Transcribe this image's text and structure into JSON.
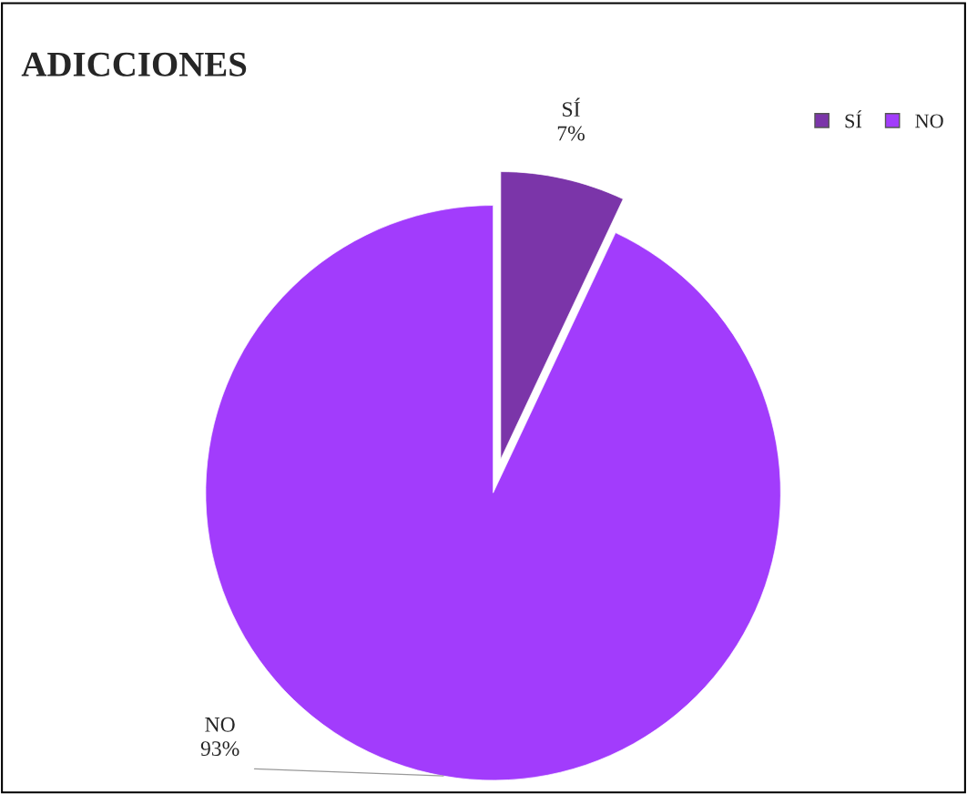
{
  "chart_data": {
    "type": "pie",
    "title": "ADICCIONES",
    "categories": [
      "SÍ",
      "NO"
    ],
    "values": [
      7,
      93
    ],
    "value_labels": [
      "7%",
      "93%"
    ],
    "colors": [
      "#7b35a9",
      "#a23cfc"
    ],
    "legend": "top right"
  }
}
